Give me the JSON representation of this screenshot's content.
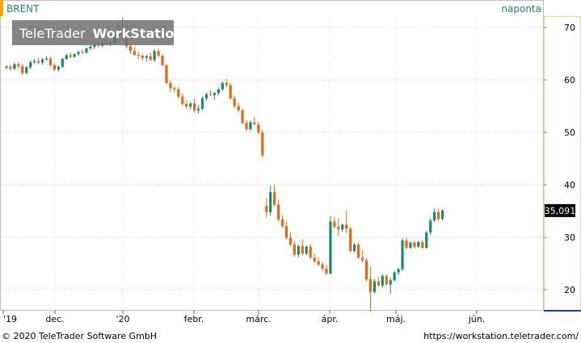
{
  "header": {
    "symbol": "BRENT",
    "period": "naponta",
    "watermark_brand": "TeleTrader",
    "watermark_product": "WorkStation"
  },
  "footer": {
    "copyright": "© 2020 TeleTrader Software GmbH",
    "url": "https://workstation.teletrader.com/"
  },
  "colors": {
    "up": "#1a8a6a",
    "down": "#e06a14",
    "symbol_text": "#1a8a6a",
    "axis_frame": "#ffd27a",
    "last_price_box": "#000000"
  },
  "chart_data": {
    "type": "candlestick",
    "ylim": [
      15,
      73
    ],
    "y_ticks": [
      "70",
      "60",
      "50",
      "40",
      "30",
      "20"
    ],
    "x_labels": [
      "'19",
      "dec.",
      "'20",
      "febr.",
      "márc.",
      "ápr.",
      "máj.",
      "jún."
    ],
    "last_value_label": "35,091",
    "last_value": 35.09,
    "grid": true,
    "candles": [
      [
        62.3,
        62.8,
        62.0,
        62.5
      ],
      [
        62.5,
        62.9,
        61.8,
        62.1
      ],
      [
        62.1,
        63.3,
        61.9,
        63.0
      ],
      [
        63.0,
        63.4,
        62.2,
        62.6
      ],
      [
        62.6,
        63.1,
        60.9,
        61.3
      ],
      [
        61.3,
        62.6,
        61.0,
        62.4
      ],
      [
        62.4,
        63.7,
        62.1,
        63.4
      ],
      [
        63.4,
        64.0,
        63.0,
        63.6
      ],
      [
        63.6,
        64.2,
        63.0,
        63.3
      ],
      [
        63.3,
        64.1,
        62.9,
        63.9
      ],
      [
        63.9,
        64.5,
        63.6,
        64.1
      ],
      [
        64.1,
        64.4,
        62.5,
        62.8
      ],
      [
        62.8,
        63.2,
        61.7,
        62.0
      ],
      [
        62.0,
        62.8,
        61.6,
        62.5
      ],
      [
        62.5,
        64.2,
        62.3,
        64.0
      ],
      [
        64.0,
        65.0,
        63.8,
        64.7
      ],
      [
        64.7,
        65.2,
        64.1,
        64.4
      ],
      [
        64.4,
        65.1,
        64.2,
        64.9
      ],
      [
        64.9,
        65.6,
        64.6,
        65.3
      ],
      [
        65.3,
        65.8,
        64.9,
        65.2
      ],
      [
        65.2,
        66.2,
        65.0,
        66.0
      ],
      [
        66.0,
        66.6,
        65.6,
        66.3
      ],
      [
        66.3,
        67.0,
        65.9,
        66.7
      ],
      [
        66.7,
        67.2,
        66.2,
        66.5
      ],
      [
        66.5,
        67.3,
        66.2,
        67.0
      ],
      [
        67.0,
        67.6,
        66.6,
        66.9
      ],
      [
        66.9,
        67.5,
        66.4,
        67.2
      ],
      [
        67.2,
        68.9,
        66.9,
        68.5
      ],
      [
        68.5,
        71.0,
        68.0,
        68.6
      ],
      [
        68.6,
        71.8,
        67.5,
        68.9
      ],
      [
        68.9,
        69.5,
        66.0,
        66.4
      ],
      [
        66.4,
        67.0,
        64.9,
        65.5
      ],
      [
        65.5,
        66.3,
        64.6,
        64.8
      ],
      [
        64.8,
        65.4,
        63.9,
        64.6
      ],
      [
        64.6,
        65.0,
        63.7,
        64.2
      ],
      [
        64.2,
        64.8,
        63.5,
        64.5
      ],
      [
        64.5,
        65.2,
        63.6,
        63.8
      ],
      [
        63.8,
        65.9,
        63.4,
        65.5
      ],
      [
        65.5,
        66.0,
        64.3,
        64.6
      ],
      [
        64.6,
        64.9,
        62.6,
        62.8
      ],
      [
        62.8,
        63.0,
        59.2,
        59.4
      ],
      [
        59.4,
        59.9,
        57.7,
        58.4
      ],
      [
        58.4,
        58.8,
        57.6,
        58.2
      ],
      [
        58.2,
        58.6,
        56.5,
        56.8
      ],
      [
        56.8,
        57.4,
        55.1,
        55.4
      ],
      [
        55.4,
        56.2,
        54.4,
        54.9
      ],
      [
        54.9,
        55.8,
        54.3,
        55.5
      ],
      [
        55.5,
        56.4,
        53.8,
        54.2
      ],
      [
        54.2,
        55.2,
        53.6,
        54.5
      ],
      [
        54.5,
        56.8,
        54.2,
        56.5
      ],
      [
        56.5,
        57.5,
        56.0,
        57.3
      ],
      [
        57.3,
        58.0,
        56.9,
        57.1
      ],
      [
        57.1,
        57.7,
        56.2,
        57.5
      ],
      [
        57.5,
        58.5,
        57.1,
        58.2
      ],
      [
        58.2,
        59.7,
        57.9,
        59.4
      ],
      [
        59.4,
        60.2,
        58.5,
        59.0
      ],
      [
        59.0,
        59.4,
        56.2,
        56.5
      ],
      [
        56.5,
        57.0,
        54.6,
        55.0
      ],
      [
        55.0,
        55.6,
        53.8,
        54.2
      ],
      [
        54.2,
        54.5,
        51.5,
        51.8
      ],
      [
        51.8,
        52.3,
        50.2,
        50.6
      ],
      [
        50.6,
        52.3,
        50.3,
        51.9
      ],
      [
        51.9,
        53.0,
        51.4,
        51.5
      ],
      [
        51.5,
        52.0,
        49.7,
        50.0
      ],
      [
        50.0,
        50.4,
        45.2,
        45.6
      ],
      [
        36.0,
        37.5,
        33.8,
        34.8
      ],
      [
        34.8,
        39.8,
        34.1,
        38.6
      ],
      [
        38.6,
        40.0,
        35.9,
        36.2
      ],
      [
        36.2,
        37.1,
        33.0,
        33.4
      ],
      [
        33.4,
        34.2,
        31.8,
        32.1
      ],
      [
        32.1,
        33.0,
        29.6,
        29.9
      ],
      [
        29.9,
        30.9,
        28.2,
        28.6
      ],
      [
        28.6,
        29.2,
        26.3,
        26.7
      ],
      [
        26.7,
        28.6,
        26.2,
        28.3
      ],
      [
        28.3,
        29.6,
        26.5,
        26.9
      ],
      [
        26.9,
        28.5,
        26.6,
        28.2
      ],
      [
        28.2,
        28.8,
        25.9,
        26.1
      ],
      [
        26.1,
        26.9,
        25.1,
        25.4
      ],
      [
        25.4,
        26.1,
        24.5,
        24.8
      ],
      [
        24.8,
        25.3,
        23.6,
        24.0
      ],
      [
        24.0,
        24.8,
        22.8,
        23.1
      ],
      [
        23.1,
        34.0,
        22.9,
        33.0
      ],
      [
        33.0,
        33.8,
        31.6,
        32.0
      ],
      [
        32.0,
        33.6,
        30.3,
        31.5
      ],
      [
        31.5,
        32.6,
        31.0,
        32.4
      ],
      [
        32.4,
        35.0,
        30.8,
        31.6
      ],
      [
        31.6,
        32.0,
        27.1,
        27.4
      ],
      [
        27.4,
        28.9,
        27.1,
        28.6
      ],
      [
        28.6,
        29.0,
        25.9,
        26.1
      ],
      [
        26.1,
        27.5,
        25.2,
        25.6
      ],
      [
        25.6,
        26.0,
        21.6,
        22.0
      ],
      [
        22.0,
        24.4,
        15.8,
        19.6
      ],
      [
        19.6,
        22.0,
        19.3,
        21.6
      ],
      [
        21.6,
        22.4,
        20.6,
        20.8
      ],
      [
        20.8,
        23.0,
        20.4,
        22.6
      ],
      [
        22.6,
        23.0,
        20.8,
        21.0
      ],
      [
        21.0,
        22.3,
        19.2,
        21.8
      ],
      [
        21.8,
        23.6,
        21.5,
        23.3
      ],
      [
        23.3,
        24.2,
        22.8,
        23.9
      ],
      [
        23.9,
        29.8,
        23.6,
        29.4
      ],
      [
        29.4,
        30.0,
        27.7,
        28.0
      ],
      [
        28.0,
        29.2,
        27.8,
        29.0
      ],
      [
        29.0,
        29.3,
        27.9,
        28.2
      ],
      [
        28.2,
        29.3,
        28.0,
        29.1
      ],
      [
        29.1,
        29.4,
        27.8,
        28.0
      ],
      [
        28.0,
        31.2,
        27.8,
        30.9
      ],
      [
        30.9,
        33.6,
        30.5,
        33.2
      ],
      [
        33.2,
        35.5,
        32.9,
        34.8
      ],
      [
        34.8,
        35.4,
        33.0,
        33.5
      ],
      [
        33.5,
        35.3,
        33.2,
        35.1
      ]
    ]
  }
}
